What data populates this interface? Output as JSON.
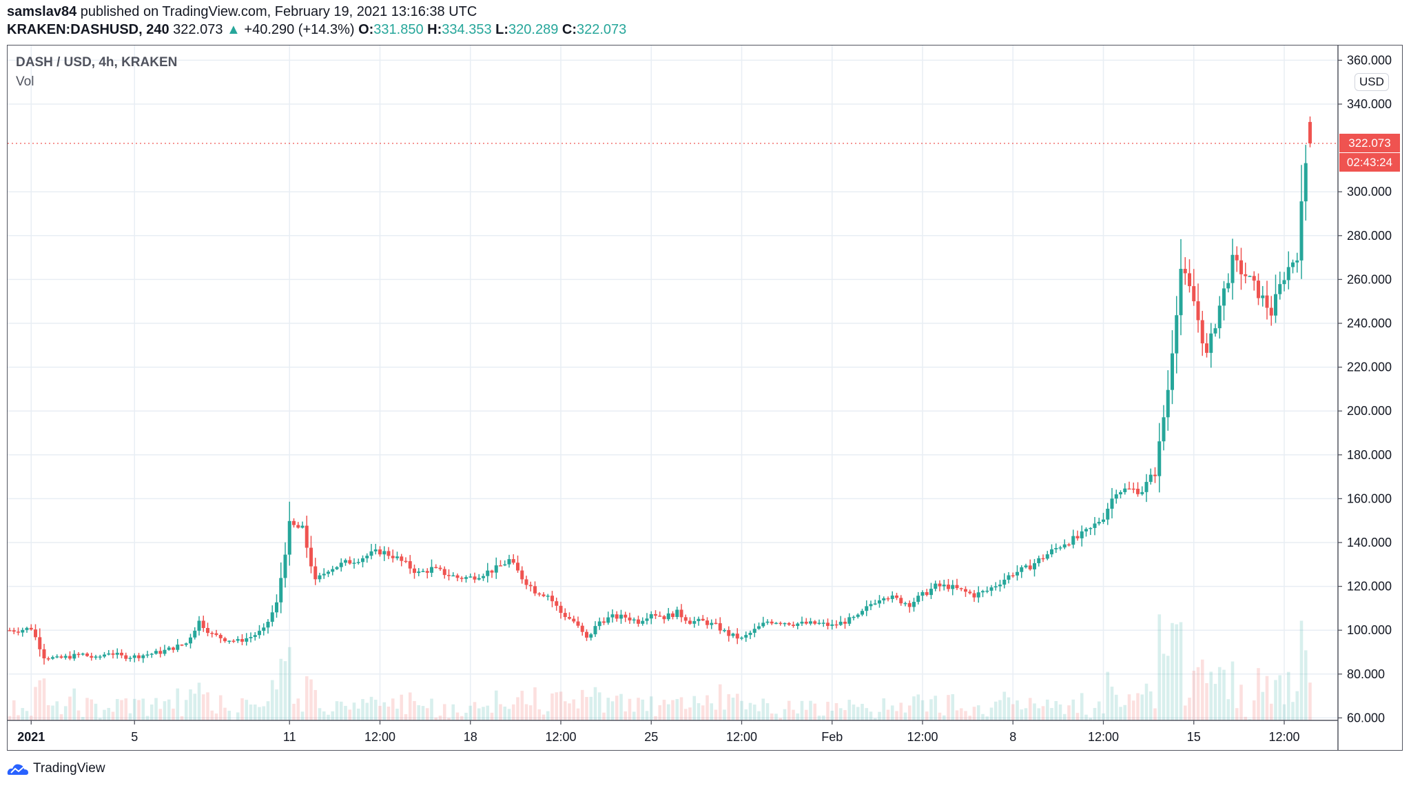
{
  "header": {
    "author": "samslav84",
    "published": "published on TradingView.com, February 19, 2021 13:16:38 UTC",
    "symbol": "KRAKEN:DASHUSD, 240",
    "last": "322.073",
    "change": "+40.290 (+14.3%)",
    "o_label": "O:",
    "o": "331.850",
    "h_label": "H:",
    "h": "334.353",
    "l_label": "L:",
    "l": "320.289",
    "c_label": "C:",
    "c": "322.073"
  },
  "legend": {
    "title": "DASH / USD, 4h, KRAKEN",
    "vol": "Vol"
  },
  "price_axis": {
    "currency": "USD",
    "last_price": "322.073",
    "countdown": "02:43:24"
  },
  "branding": {
    "name": "TradingView"
  },
  "colors": {
    "up": "#26a69a",
    "down": "#ef5350",
    "grid": "#e8eef4"
  },
  "chart_data": {
    "type": "candlestick",
    "title": "DASH / USD, 4h, KRAKEN",
    "interval_hours": 4,
    "start": "2020-12-31 04:00",
    "end": "2021-02-19 12:00",
    "ylim": [
      60,
      360
    ],
    "y_ticks": [
      "360.000",
      "340.000",
      "300.000",
      "280.000",
      "260.000",
      "240.000",
      "220.000",
      "200.000",
      "180.000",
      "160.000",
      "140.000",
      "120.000",
      "100.000",
      "80.000",
      "60.000"
    ],
    "y_tick_values": [
      360,
      340,
      300,
      280,
      260,
      240,
      220,
      200,
      180,
      160,
      140,
      120,
      100,
      80,
      60
    ],
    "x_ticks": [
      {
        "label": "2021",
        "candle": 5
      },
      {
        "label": "5",
        "candle": 29
      },
      {
        "label": "11",
        "candle": 65
      },
      {
        "label": "12:00",
        "candle": 86
      },
      {
        "label": "18",
        "candle": 107
      },
      {
        "label": "12:00",
        "candle": 128
      },
      {
        "label": "25",
        "candle": 149
      },
      {
        "label": "12:00",
        "candle": 170
      },
      {
        "label": "Feb",
        "candle": 191
      },
      {
        "label": "12:00",
        "candle": 212
      },
      {
        "label": "8",
        "candle": 233
      },
      {
        "label": "12:00",
        "candle": 254
      },
      {
        "label": "15",
        "candle": 275
      },
      {
        "label": "12:00",
        "candle": 296
      }
    ],
    "closes_12h": [
      100,
      101,
      88,
      87,
      88,
      89,
      87,
      90,
      88,
      88,
      89,
      90,
      92,
      94,
      104,
      98,
      96,
      95,
      97,
      100,
      112,
      148,
      146,
      122,
      128,
      130,
      132,
      134,
      136,
      134,
      130,
      126,
      128,
      126,
      124,
      124,
      126,
      128,
      132,
      124,
      118,
      116,
      108,
      104,
      96,
      104,
      106,
      106,
      104,
      108,
      106,
      108,
      104,
      104,
      102,
      98,
      96,
      100,
      104,
      104,
      103,
      103,
      103,
      102,
      104,
      106,
      112,
      116,
      114,
      112,
      116,
      120,
      120,
      118,
      116,
      118,
      122,
      126,
      128,
      132,
      136,
      140,
      142,
      146,
      152,
      164,
      164,
      164,
      172,
      210,
      265,
      250,
      225,
      248,
      268,
      262,
      254,
      245,
      262,
      272,
      334,
      322
    ],
    "last_candle": {
      "open": 331.85,
      "high": 334.353,
      "low": 320.289,
      "close": 322.073
    }
  }
}
